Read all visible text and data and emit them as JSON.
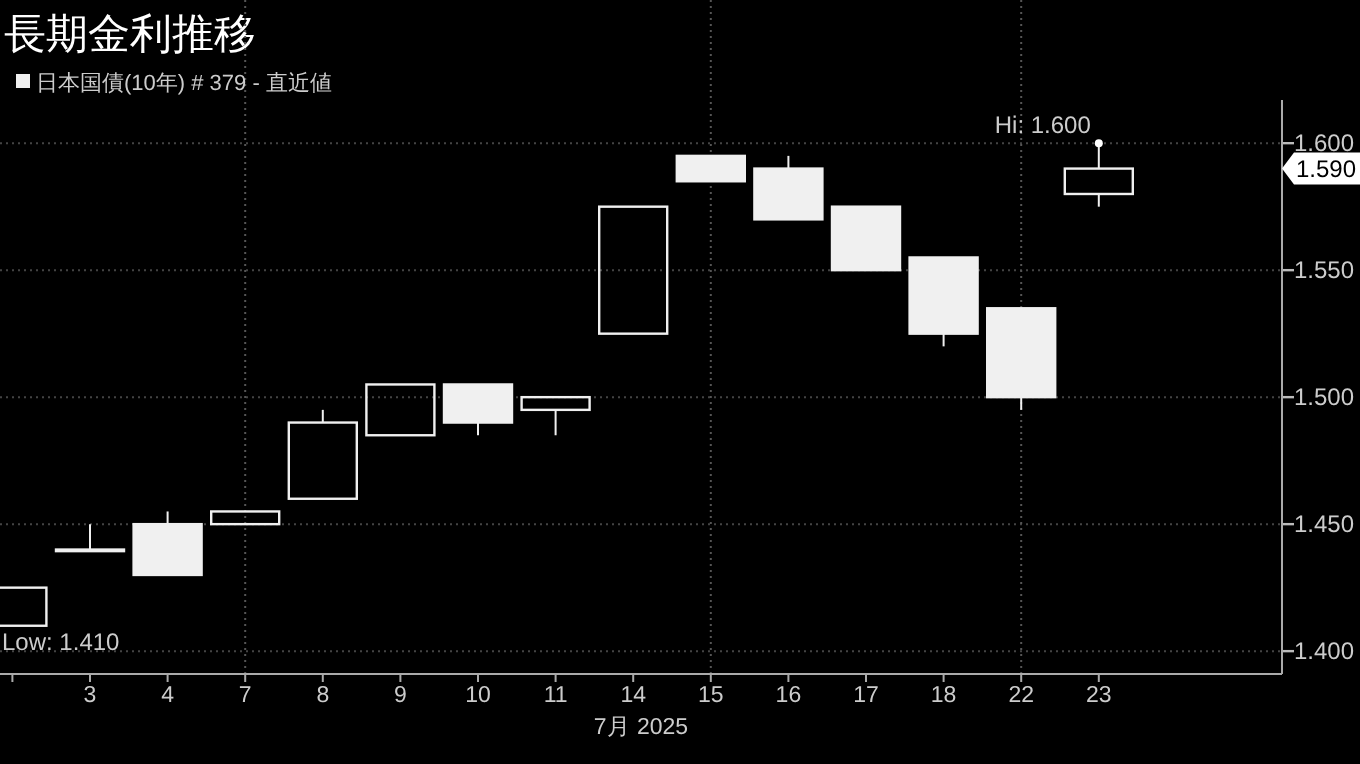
{
  "chart_data": {
    "type": "candlestick",
    "title": "長期金利推移",
    "xlabel": "7月 2025",
    "categories": [
      null,
      "3",
      "4",
      "7",
      "8",
      "9",
      "10",
      "11",
      "14",
      "15",
      "16",
      "17",
      "18",
      "22",
      "23"
    ],
    "series": [
      {
        "name": "日本国債(10年) # 379 - 直近値",
        "color": "#f0f0f0",
        "ohlc": [
          [
            1.41,
            1.425,
            1.41,
            1.425
          ],
          [
            1.44,
            1.45,
            1.44,
            1.44
          ],
          [
            1.45,
            1.455,
            1.43,
            1.43
          ],
          [
            1.45,
            1.455,
            1.45,
            1.455
          ],
          [
            1.46,
            1.495,
            1.46,
            1.49
          ],
          [
            1.485,
            1.505,
            1.485,
            1.505
          ],
          [
            1.505,
            1.505,
            1.485,
            1.49
          ],
          [
            1.495,
            1.5,
            1.485,
            1.5
          ],
          [
            1.525,
            1.575,
            1.525,
            1.575
          ],
          [
            1.595,
            1.595,
            1.585,
            1.585
          ],
          [
            1.59,
            1.595,
            1.57,
            1.57
          ],
          [
            1.575,
            1.575,
            1.55,
            1.55
          ],
          [
            1.555,
            1.555,
            1.52,
            1.525
          ],
          [
            1.535,
            1.535,
            1.495,
            1.5
          ],
          [
            1.58,
            1.6,
            1.575,
            1.59
          ]
        ]
      }
    ],
    "ylim": [
      1.391,
      1.617
    ],
    "yticks": [
      {
        "value": 1.4,
        "label": "1.400"
      },
      {
        "value": 1.45,
        "label": "1.450"
      },
      {
        "value": 1.5,
        "label": "1.500"
      },
      {
        "value": 1.55,
        "label": "1.550"
      },
      {
        "value": 1.6,
        "label": "1.600"
      }
    ],
    "grid": "y",
    "ref_lines": [
      {
        "axis": "x",
        "value": "7",
        "color": "#555555",
        "line_style": "dotted"
      },
      {
        "axis": "x",
        "value": "15",
        "color": "#555555",
        "line_style": "dotted"
      },
      {
        "axis": "x",
        "value": "22",
        "color": "#555555",
        "line_style": "dotted"
      }
    ],
    "legend": "top left",
    "annotations": [
      {
        "text": "Hi: 1.600",
        "x": "23",
        "y": 1.6
      },
      "Low: 1.410",
      "1.590"
    ]
  }
}
